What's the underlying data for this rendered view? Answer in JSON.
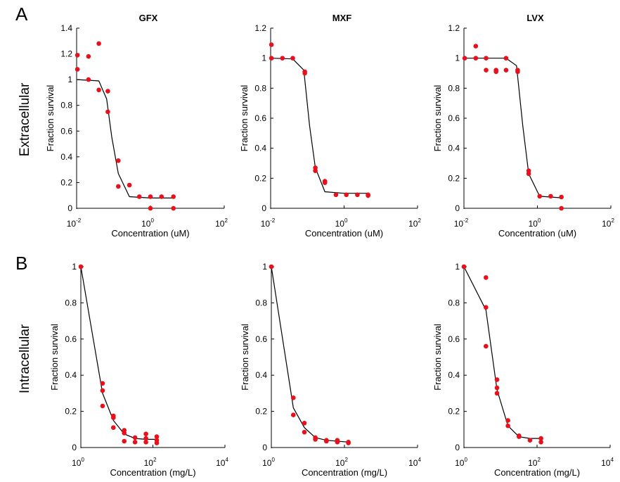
{
  "panels": {
    "A": {
      "letter": "A",
      "row_label": "Extracellular"
    },
    "B": {
      "letter": "B",
      "row_label": "Intracellular"
    }
  },
  "colors": {
    "points": "#e8101a",
    "fit_line": "#000000",
    "axes": "#000000"
  },
  "chart_data": [
    {
      "type": "scatter",
      "panel": "A",
      "title": "GFX",
      "xlabel": "Concentration (uM)",
      "ylabel": "Fraction survival",
      "xscale": "log",
      "xlim": [
        0.01,
        100
      ],
      "ylim": [
        0,
        1.4
      ],
      "xticks": [
        {
          "base": "10",
          "exp": "-2"
        },
        {
          "base": "10",
          "exp": "0"
        },
        {
          "base": "10",
          "exp": "2"
        }
      ],
      "yticks": [
        "0",
        "0.2",
        "0.4",
        "0.6",
        "0.8",
        "1",
        "1.2",
        "1.4"
      ],
      "ytick_values": [
        0,
        0.2,
        0.4,
        0.6,
        0.8,
        1,
        1.2,
        1.4
      ],
      "series": [
        {
          "points": [
            [
              0.0105,
              1.19
            ],
            [
              0.0105,
              1.08
            ],
            [
              0.021,
              1.18
            ],
            [
              0.021,
              1.0
            ],
            [
              0.04,
              1.28
            ],
            [
              0.04,
              0.92
            ],
            [
              0.07,
              0.91
            ],
            [
              0.07,
              0.75
            ],
            [
              0.135,
              0.37
            ],
            [
              0.135,
              0.17
            ],
            [
              0.27,
              0.18
            ],
            [
              0.5,
              0.09
            ],
            [
              1.0,
              0.09
            ],
            [
              1.0,
              0.0
            ],
            [
              2.0,
              0.09
            ],
            [
              4.2,
              0.09
            ],
            [
              4.2,
              0.0
            ]
          ]
        },
        {
          "line": [
            [
              0.0105,
              1.0
            ],
            [
              0.04,
              0.99
            ],
            [
              0.065,
              0.85
            ],
            [
              0.09,
              0.55
            ],
            [
              0.135,
              0.27
            ],
            [
              0.27,
              0.09
            ],
            [
              1.0,
              0.08
            ],
            [
              4.2,
              0.08
            ]
          ]
        }
      ]
    },
    {
      "type": "scatter",
      "panel": "A",
      "title": "MXF",
      "xlabel": "Concentration (uM)",
      "ylabel": "Fraction survival",
      "xscale": "log",
      "xlim": [
        0.01,
        100
      ],
      "ylim": [
        0,
        1.2
      ],
      "xticks": [
        {
          "base": "10",
          "exp": "-2"
        },
        {
          "base": "10",
          "exp": "0"
        },
        {
          "base": "10",
          "exp": "2"
        }
      ],
      "yticks": [
        "0",
        "0.2",
        "0.4",
        "0.6",
        "0.8",
        "1",
        "1.2"
      ],
      "ytick_values": [
        0,
        0.2,
        0.4,
        0.6,
        0.8,
        1,
        1.2
      ],
      "series": [
        {
          "points": [
            [
              0.0105,
              1.09
            ],
            [
              0.0105,
              1.0
            ],
            [
              0.021,
              1.0
            ],
            [
              0.04,
              1.0
            ],
            [
              0.085,
              0.91
            ],
            [
              0.085,
              0.9
            ],
            [
              0.165,
              0.27
            ],
            [
              0.165,
              0.25
            ],
            [
              0.3,
              0.18
            ],
            [
              0.3,
              0.17
            ],
            [
              0.6,
              0.09
            ],
            [
              1.15,
              0.09
            ],
            [
              2.3,
              0.09
            ],
            [
              4.5,
              0.09
            ],
            [
              4.5,
              0.085
            ]
          ]
        },
        {
          "line": [
            [
              0.0105,
              1.0
            ],
            [
              0.04,
              0.995
            ],
            [
              0.08,
              0.92
            ],
            [
              0.115,
              0.55
            ],
            [
              0.165,
              0.27
            ],
            [
              0.3,
              0.11
            ],
            [
              1.0,
              0.1
            ],
            [
              4.5,
              0.1
            ]
          ]
        }
      ]
    },
    {
      "type": "scatter",
      "panel": "A",
      "title": "LVX",
      "xlabel": "Concentration (uM)",
      "ylabel": "Fraction survival",
      "xscale": "log",
      "xlim": [
        0.01,
        100
      ],
      "ylim": [
        0,
        1.2
      ],
      "xticks": [
        {
          "base": "10",
          "exp": "-2"
        },
        {
          "base": "10",
          "exp": "0"
        },
        {
          "base": "10",
          "exp": "2"
        }
      ],
      "yticks": [
        "0",
        "0.2",
        "0.4",
        "0.6",
        "0.8",
        "1",
        "1.2"
      ],
      "ytick_values": [
        0,
        0.2,
        0.4,
        0.6,
        0.8,
        1,
        1.2
      ],
      "series": [
        {
          "points": [
            [
              0.0105,
              1.0
            ],
            [
              0.021,
              1.08
            ],
            [
              0.021,
              1.0
            ],
            [
              0.04,
              1.0
            ],
            [
              0.04,
              0.92
            ],
            [
              0.075,
              0.92
            ],
            [
              0.075,
              0.91
            ],
            [
              0.14,
              0.92
            ],
            [
              0.14,
              1.0
            ],
            [
              0.29,
              0.92
            ],
            [
              0.29,
              0.91
            ],
            [
              0.58,
              0.25
            ],
            [
              0.58,
              0.23
            ],
            [
              1.15,
              0.08
            ],
            [
              2.3,
              0.08
            ],
            [
              4.5,
              0.075
            ],
            [
              4.5,
              0.0
            ]
          ]
        },
        {
          "line": [
            [
              0.0105,
              1.0
            ],
            [
              0.14,
              1.0
            ],
            [
              0.27,
              0.95
            ],
            [
              0.4,
              0.55
            ],
            [
              0.58,
              0.23
            ],
            [
              1.15,
              0.08
            ],
            [
              4.5,
              0.07
            ]
          ]
        }
      ]
    },
    {
      "type": "scatter",
      "panel": "B",
      "title": "",
      "xlabel": "Concentration (mg/L)",
      "ylabel": "Fraction survival",
      "xscale": "log",
      "xlim": [
        1,
        10000
      ],
      "ylim": [
        0,
        1
      ],
      "xticks": [
        {
          "base": "10",
          "exp": "0"
        },
        {
          "base": "10",
          "exp": "2"
        },
        {
          "base": "10",
          "exp": "4"
        }
      ],
      "yticks": [
        "0",
        "0.2",
        "0.4",
        "0.6",
        "0.8",
        "1"
      ],
      "ytick_values": [
        0,
        0.2,
        0.4,
        0.6,
        0.8,
        1
      ],
      "series": [
        {
          "points": [
            [
              1.0,
              1.0
            ],
            [
              4.0,
              0.355
            ],
            [
              4.0,
              0.315
            ],
            [
              4.0,
              0.23
            ],
            [
              8.0,
              0.175
            ],
            [
              8.0,
              0.165
            ],
            [
              8.0,
              0.11
            ],
            [
              16.0,
              0.095
            ],
            [
              16.0,
              0.08
            ],
            [
              16.0,
              0.035
            ],
            [
              32.0,
              0.055
            ],
            [
              32.0,
              0.03
            ],
            [
              64.0,
              0.075
            ],
            [
              64.0,
              0.05
            ],
            [
              64.0,
              0.03
            ],
            [
              128.0,
              0.06
            ],
            [
              128.0,
              0.04
            ],
            [
              128.0,
              0.025
            ]
          ]
        },
        {
          "line": [
            [
              1.0,
              1.0
            ],
            [
              4.0,
              0.3
            ],
            [
              8.0,
              0.15
            ],
            [
              16.0,
              0.075
            ],
            [
              32.0,
              0.05
            ],
            [
              64.0,
              0.045
            ],
            [
              128.0,
              0.045
            ]
          ]
        }
      ]
    },
    {
      "type": "scatter",
      "panel": "B",
      "title": "",
      "xlabel": "Concentration (mg/L)",
      "ylabel": "Fraction survival",
      "xscale": "log",
      "xlim": [
        1,
        10000
      ],
      "ylim": [
        0,
        1
      ],
      "xticks": [
        {
          "base": "10",
          "exp": "0"
        },
        {
          "base": "10",
          "exp": "2"
        },
        {
          "base": "10",
          "exp": "4"
        }
      ],
      "yticks": [
        "0",
        "0.2",
        "0.4",
        "0.6",
        "0.8",
        "1"
      ],
      "ytick_values": [
        0,
        0.2,
        0.4,
        0.6,
        0.8,
        1
      ],
      "series": [
        {
          "points": [
            [
              1.0,
              1.0
            ],
            [
              4.0,
              0.275
            ],
            [
              4.0,
              0.18
            ],
            [
              8.0,
              0.135
            ],
            [
              8.0,
              0.085
            ],
            [
              16.0,
              0.055
            ],
            [
              16.0,
              0.045
            ],
            [
              32.0,
              0.04
            ],
            [
              32.0,
              0.035
            ],
            [
              64.0,
              0.04
            ],
            [
              64.0,
              0.03
            ],
            [
              128.0,
              0.03
            ],
            [
              128.0,
              0.025
            ]
          ]
        },
        {
          "line": [
            [
              1.0,
              1.0
            ],
            [
              4.0,
              0.22
            ],
            [
              8.0,
              0.11
            ],
            [
              16.0,
              0.055
            ],
            [
              32.0,
              0.04
            ],
            [
              64.0,
              0.035
            ],
            [
              128.0,
              0.03
            ]
          ]
        }
      ]
    },
    {
      "type": "scatter",
      "panel": "B",
      "title": "",
      "xlabel": "Concentration (mg/L)",
      "ylabel": "Fraction survival",
      "xscale": "log",
      "xlim": [
        1,
        10000
      ],
      "ylim": [
        0,
        1
      ],
      "xticks": [
        {
          "base": "10",
          "exp": "0"
        },
        {
          "base": "10",
          "exp": "2"
        },
        {
          "base": "10",
          "exp": "4"
        }
      ],
      "yticks": [
        "0",
        "0.2",
        "0.4",
        "0.6",
        "0.8",
        "1"
      ],
      "ytick_values": [
        0,
        0.2,
        0.4,
        0.6,
        0.8,
        1
      ],
      "series": [
        {
          "points": [
            [
              1.0,
              1.0
            ],
            [
              4.0,
              0.94
            ],
            [
              4.0,
              0.775
            ],
            [
              4.0,
              0.56
            ],
            [
              8.0,
              0.375
            ],
            [
              8.0,
              0.33
            ],
            [
              8.0,
              0.3
            ],
            [
              16.0,
              0.15
            ],
            [
              16.0,
              0.12
            ],
            [
              32.0,
              0.065
            ],
            [
              32.0,
              0.06
            ],
            [
              64.0,
              0.04
            ],
            [
              128.0,
              0.05
            ],
            [
              128.0,
              0.03
            ]
          ]
        },
        {
          "line": [
            [
              1.0,
              1.0
            ],
            [
              4.0,
              0.76
            ],
            [
              8.0,
              0.32
            ],
            [
              16.0,
              0.12
            ],
            [
              32.0,
              0.06
            ],
            [
              64.0,
              0.05
            ],
            [
              128.0,
              0.05
            ]
          ]
        }
      ]
    }
  ]
}
